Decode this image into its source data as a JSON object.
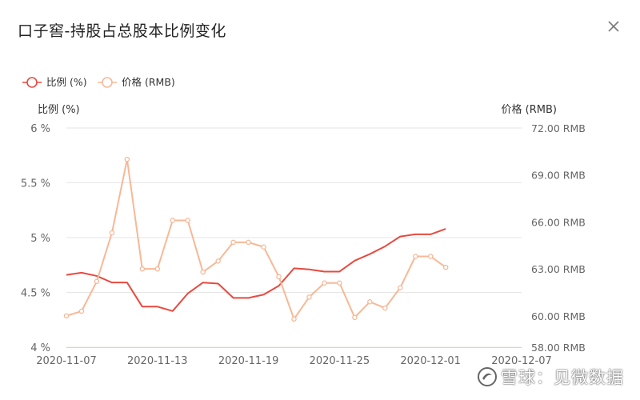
{
  "dialog": {
    "title": "口子窖-持股占总股本比例变化"
  },
  "watermark": {
    "text": "雪球：见微数据"
  },
  "chart_data": {
    "type": "line",
    "legend_position": "top-left",
    "grid": true,
    "left_axis_title": "比例 (%)",
    "right_axis_title": "价格 (RMB)",
    "left_ylim": [
      4,
      6
    ],
    "right_ylim": [
      58,
      72
    ],
    "left_ticks": [
      {
        "value": 4,
        "label": "4 %"
      },
      {
        "value": 4.5,
        "label": "4.5 %"
      },
      {
        "value": 5,
        "label": "5 %"
      },
      {
        "value": 5.5,
        "label": "5.5 %"
      },
      {
        "value": 6,
        "label": "6 %"
      }
    ],
    "right_ticks": [
      {
        "value": 58,
        "label": "58.00 RMB"
      },
      {
        "value": 60,
        "label": "60.00 RMB"
      },
      {
        "value": 63,
        "label": "63.00 RMB"
      },
      {
        "value": 66,
        "label": "66.00 RMB"
      },
      {
        "value": 69,
        "label": "69.00 RMB"
      },
      {
        "value": 72,
        "label": "72.00 RMB"
      }
    ],
    "x_tick_labels": [
      {
        "index": 0,
        "label": "2020-11-07"
      },
      {
        "index": 6,
        "label": "2020-11-13"
      },
      {
        "index": 12,
        "label": "2020-11-19"
      },
      {
        "index": 18,
        "label": "2020-11-25"
      },
      {
        "index": 24,
        "label": "2020-12-01"
      },
      {
        "index": 30,
        "label": "2020-12-07"
      }
    ],
    "x": [
      "2020-11-07",
      "2020-11-08",
      "2020-11-09",
      "2020-11-10",
      "2020-11-11",
      "2020-11-12",
      "2020-11-13",
      "2020-11-14",
      "2020-11-15",
      "2020-11-16",
      "2020-11-17",
      "2020-11-18",
      "2020-11-19",
      "2020-11-20",
      "2020-11-21",
      "2020-11-22",
      "2020-11-23",
      "2020-11-24",
      "2020-11-25",
      "2020-11-26",
      "2020-11-27",
      "2020-11-28",
      "2020-11-29",
      "2020-11-30",
      "2020-12-01",
      "2020-12-02",
      "2020-12-03",
      "2020-12-04",
      "2020-12-05",
      "2020-12-06",
      "2020-12-07"
    ],
    "series": [
      {
        "name": "比例 (%)",
        "axis": "left",
        "color": "#e8493f",
        "markers": false,
        "values": [
          4.66,
          4.68,
          4.65,
          4.59,
          4.59,
          4.37,
          4.37,
          4.33,
          4.49,
          4.59,
          4.58,
          4.45,
          4.45,
          4.48,
          4.56,
          4.72,
          4.71,
          4.69,
          4.69,
          4.79,
          4.85,
          4.92,
          5.01,
          5.03,
          5.03,
          5.08,
          null,
          null,
          null,
          null,
          null
        ]
      },
      {
        "name": "价格 (RMB)",
        "axis": "right",
        "color": "#f7b896",
        "markers": true,
        "values": [
          60.0,
          60.3,
          62.2,
          65.3,
          70.0,
          63.0,
          63.0,
          66.1,
          66.1,
          62.8,
          63.5,
          64.7,
          64.7,
          64.4,
          62.5,
          59.8,
          61.2,
          62.1,
          62.1,
          59.9,
          60.9,
          60.5,
          61.8,
          63.8,
          63.8,
          63.1,
          null,
          null,
          null,
          null,
          null
        ]
      }
    ]
  }
}
